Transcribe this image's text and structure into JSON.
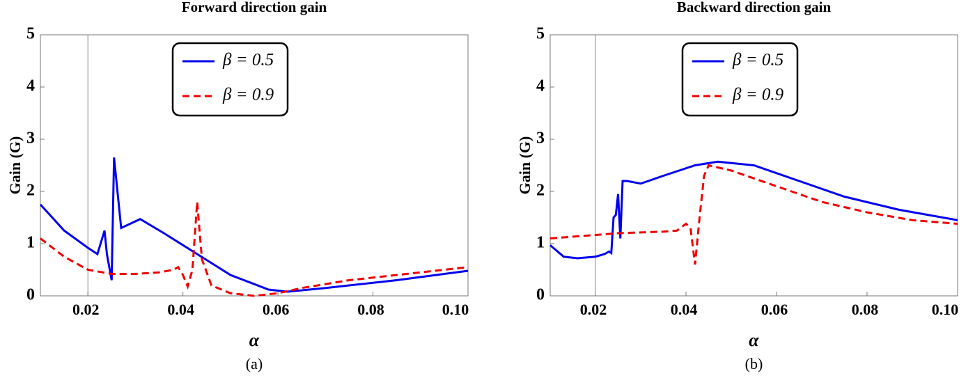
{
  "chart_data": [
    {
      "type": "line",
      "title": "Forward direction gain",
      "xlabel": "α",
      "ylabel": "Gain (G)",
      "caption": "(a)",
      "xlim": [
        0.01,
        0.1
      ],
      "ylim": [
        0,
        5
      ],
      "xticks": [
        0.02,
        0.04,
        0.06,
        0.08,
        {
          "value": 0.1,
          "label": "0.10"
        }
      ],
      "yticks": [
        0,
        1,
        2,
        3,
        4,
        5
      ],
      "vline": 0.02,
      "series": [
        {
          "name": "β = 0.5",
          "color": "#0000ee",
          "dash": false,
          "x": [
            0.01,
            0.015,
            0.02,
            0.022,
            0.0235,
            0.024,
            0.025,
            0.0255,
            0.027,
            0.031,
            0.036,
            0.043,
            0.05,
            0.058,
            0.062,
            0.07,
            0.085,
            0.1
          ],
          "values": [
            1.75,
            1.25,
            0.92,
            0.8,
            1.25,
            0.8,
            0.3,
            2.65,
            1.3,
            1.47,
            1.2,
            0.8,
            0.4,
            0.12,
            0.08,
            0.15,
            0.3,
            0.48
          ]
        },
        {
          "name": "β = 0.9",
          "color": "#ee0000",
          "dash": true,
          "x": [
            0.01,
            0.015,
            0.02,
            0.025,
            0.03,
            0.035,
            0.038,
            0.039,
            0.04,
            0.041,
            0.042,
            0.043,
            0.044,
            0.046,
            0.05,
            0.055,
            0.06,
            0.065,
            0.075,
            0.09,
            0.1
          ],
          "values": [
            1.1,
            0.75,
            0.5,
            0.42,
            0.42,
            0.45,
            0.5,
            0.55,
            0.4,
            0.18,
            0.5,
            1.8,
            0.7,
            0.2,
            0.05,
            0,
            0.05,
            0.15,
            0.3,
            0.45,
            0.55
          ]
        }
      ]
    },
    {
      "type": "line",
      "title": "Backward direction gain",
      "xlabel": "α",
      "ylabel": "Gain (G)",
      "caption": "(b)",
      "xlim": [
        0.01,
        0.1
      ],
      "ylim": [
        0,
        5
      ],
      "xticks": [
        0.02,
        0.04,
        0.06,
        0.08,
        {
          "value": 0.1,
          "label": "0.10"
        }
      ],
      "yticks": [
        0,
        1,
        2,
        3,
        4,
        5
      ],
      "vline": 0.02,
      "series": [
        {
          "name": "β = 0.5",
          "color": "#0000ee",
          "dash": false,
          "x": [
            0.01,
            0.013,
            0.016,
            0.02,
            0.022,
            0.023,
            0.0235,
            0.024,
            0.0245,
            0.025,
            0.0255,
            0.026,
            0.027,
            0.03,
            0.035,
            0.042,
            0.047,
            0.055,
            0.065,
            0.075,
            0.087,
            0.1
          ],
          "values": [
            0.97,
            0.75,
            0.72,
            0.75,
            0.8,
            0.85,
            0.82,
            1.5,
            1.55,
            1.95,
            1.1,
            2.2,
            2.2,
            2.15,
            2.3,
            2.5,
            2.57,
            2.5,
            2.2,
            1.9,
            1.65,
            1.45
          ]
        },
        {
          "name": "β = 0.9",
          "color": "#ee0000",
          "dash": true,
          "x": [
            0.01,
            0.025,
            0.035,
            0.038,
            0.04,
            0.041,
            0.042,
            0.043,
            0.044,
            0.045,
            0.05,
            0.06,
            0.07,
            0.08,
            0.09,
            0.1
          ],
          "values": [
            1.1,
            1.2,
            1.23,
            1.25,
            1.38,
            1.3,
            0.6,
            1.5,
            2.3,
            2.5,
            2.4,
            2.1,
            1.8,
            1.6,
            1.45,
            1.38
          ]
        }
      ]
    }
  ]
}
